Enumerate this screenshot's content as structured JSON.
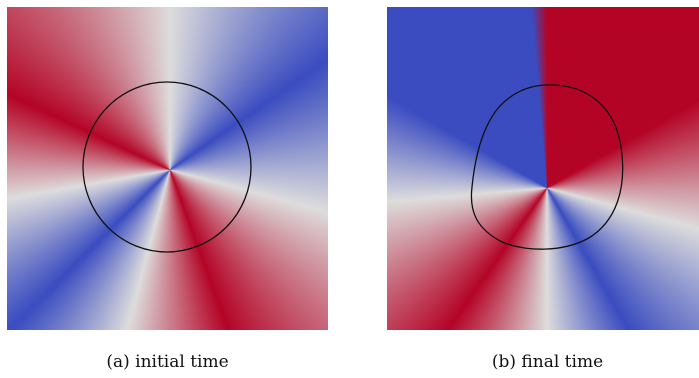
{
  "figure": {
    "panels": [
      {
        "label": "(a)",
        "caption": "initial time"
      },
      {
        "label": "(b)",
        "caption": "final time"
      }
    ],
    "colormap": {
      "negative": "#3a4cc0",
      "zero": "#dddcdc",
      "positive": "#b40426"
    }
  }
}
